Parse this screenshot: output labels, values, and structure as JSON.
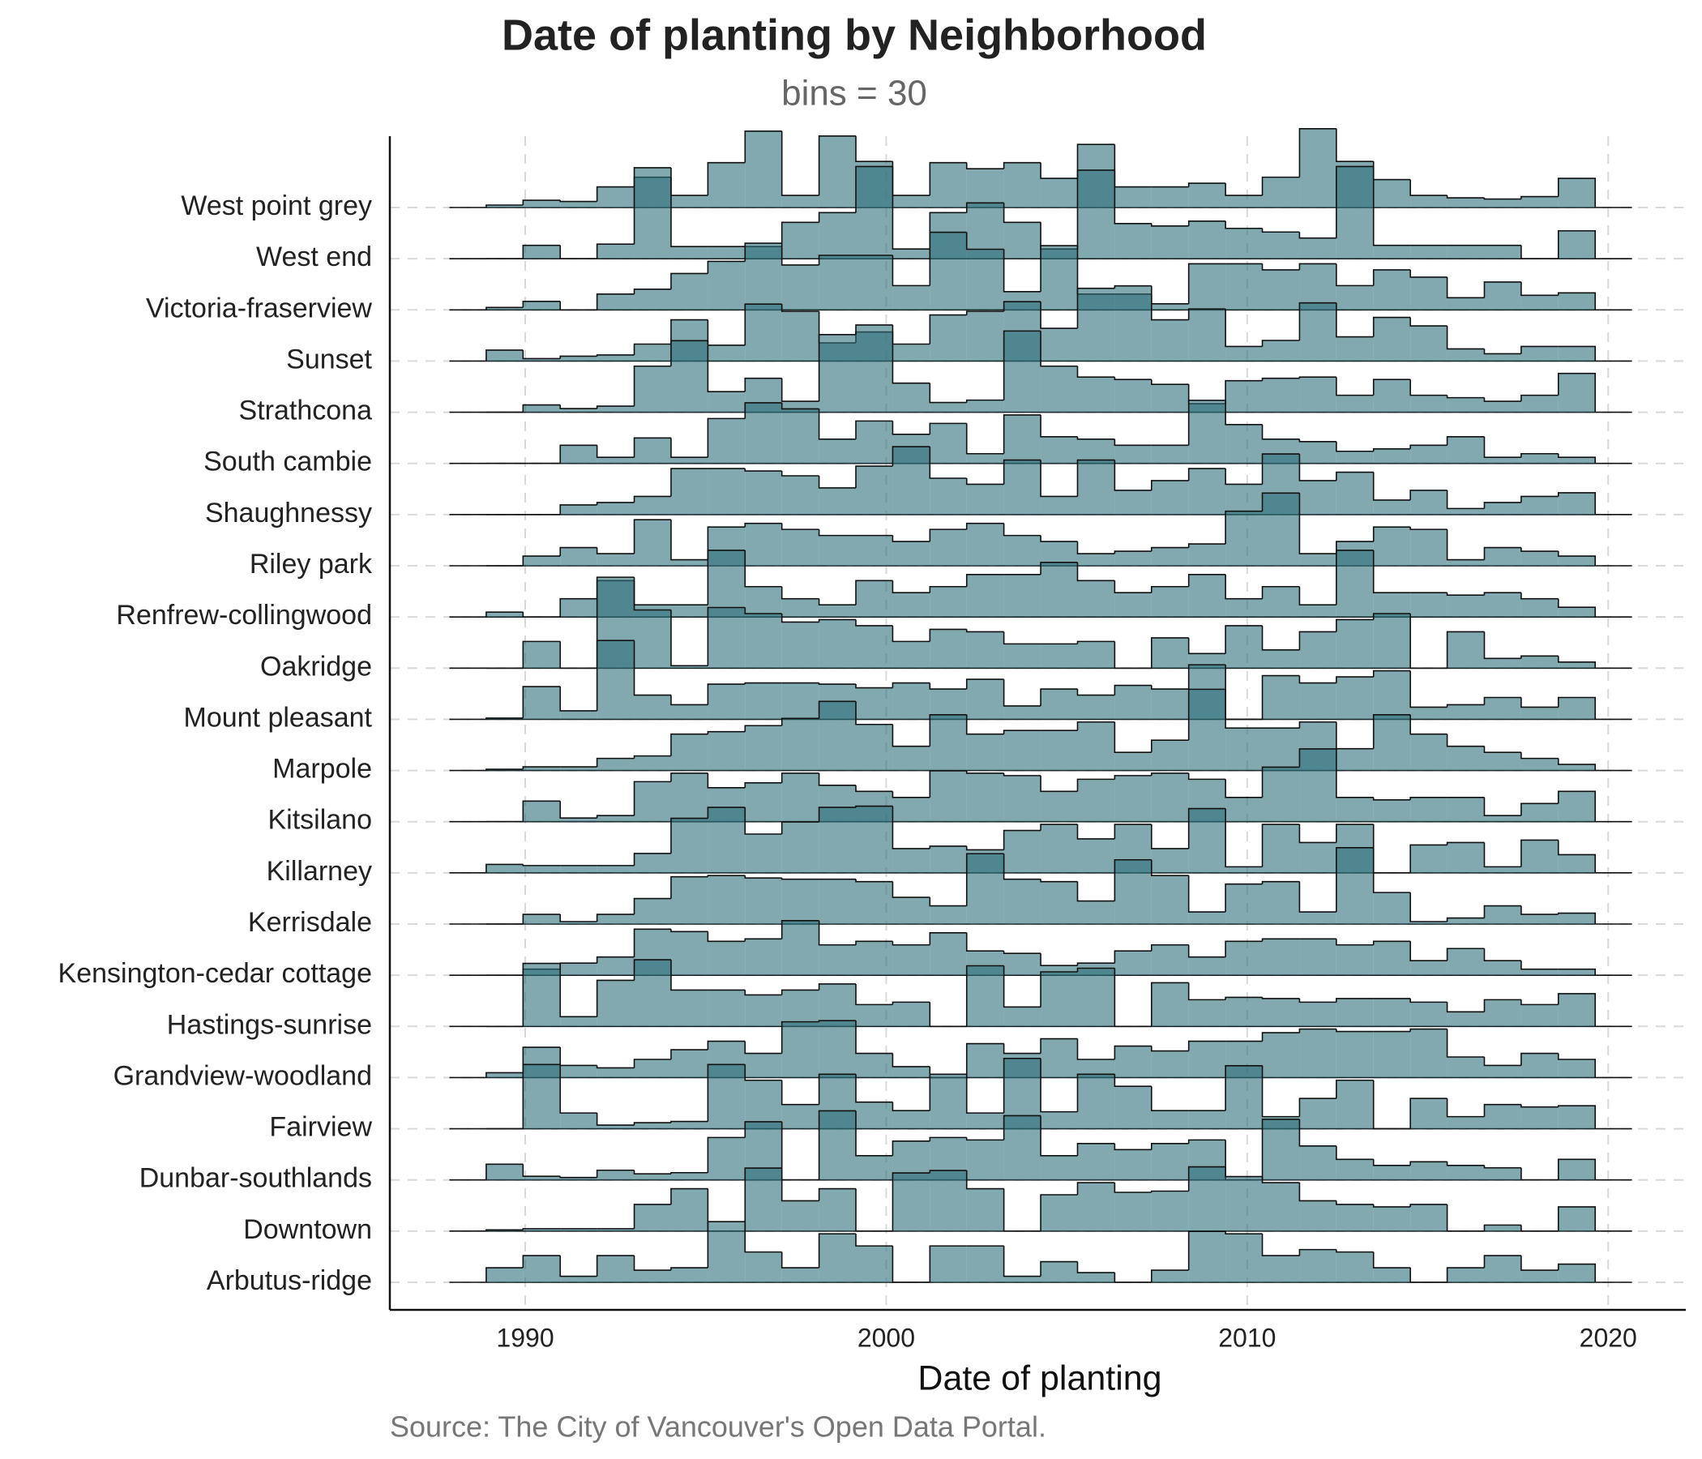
{
  "chart_data": {
    "type": "ridgeline_histogram",
    "title": "Date of planting by Neighborhood",
    "subtitle": "bins = 30",
    "x_label": "Date of planting",
    "source": "Source: The City of Vancouver's Open Data Portal.",
    "color": "#2f6f7a",
    "xlim": [
      1986.25,
      2022.15
    ],
    "xticks": [
      1990,
      2000,
      2010,
      2020
    ],
    "grid": true,
    "bins": [
      1988.92,
      1989.94,
      1990.97,
      1991.99,
      1993.02,
      1994.04,
      1995.06,
      1996.09,
      1997.11,
      1998.14,
      1999.16,
      2000.18,
      2001.21,
      2002.23,
      2003.26,
      2004.28,
      2005.3,
      2006.33,
      2007.35,
      2008.38,
      2009.4,
      2010.42,
      2011.45,
      2012.47,
      2013.5,
      2014.52,
      2015.54,
      2016.57,
      2017.59,
      2018.62,
      2019.64
    ],
    "categories": [
      "West point grey",
      "West end",
      "Victoria-fraserview",
      "Sunset",
      "Strathcona",
      "South cambie",
      "Shaughnessy",
      "Riley park",
      "Renfrew-collingwood",
      "Oakridge",
      "Mount pleasant",
      "Marpole",
      "Kitsilano",
      "Killarney",
      "Kerrisdale",
      "Kensington-cedar cottage",
      "Hastings-sunrise",
      "Grandview-woodland",
      "Fairview",
      "Dunbar-southlands",
      "Downtown",
      "Arbutus-ridge"
    ],
    "values": [
      [
        2,
        6,
        5,
        17,
        25,
        10,
        37,
        63,
        10,
        59,
        38,
        10,
        37,
        32,
        37,
        24,
        52,
        17,
        17,
        20,
        10,
        25,
        65,
        38,
        23,
        10,
        8,
        7,
        9,
        24
      ],
      [
        0,
        11,
        0,
        12,
        75,
        10,
        10,
        10,
        30,
        38,
        76,
        8,
        38,
        46,
        30,
        8,
        73,
        29,
        27,
        31,
        25,
        22,
        17,
        76,
        11,
        11,
        11,
        11,
        0,
        23
      ],
      [
        2,
        7,
        0,
        13,
        17,
        30,
        40,
        55,
        37,
        45,
        45,
        20,
        64,
        50,
        15,
        53,
        13,
        13,
        5,
        38,
        38,
        33,
        38,
        20,
        33,
        27,
        10,
        23,
        12,
        14
      ],
      [
        9,
        2,
        4,
        5,
        14,
        34,
        13,
        47,
        41,
        15,
        24,
        14,
        38,
        41,
        49,
        27,
        60,
        62,
        34,
        43,
        12,
        17,
        48,
        20,
        36,
        29,
        10,
        6,
        12,
        12
      ],
      [
        0,
        6,
        3,
        5,
        38,
        59,
        17,
        28,
        9,
        64,
        72,
        24,
        8,
        10,
        67,
        38,
        29,
        27,
        23,
        7,
        26,
        28,
        29,
        14,
        27,
        14,
        12,
        9,
        14,
        32
      ],
      [
        0,
        0,
        15,
        5,
        21,
        5,
        37,
        50,
        45,
        20,
        35,
        24,
        33,
        8,
        40,
        22,
        20,
        15,
        15,
        52,
        32,
        20,
        18,
        10,
        12,
        15,
        22,
        5,
        8,
        5
      ],
      [
        0,
        0,
        8,
        10,
        15,
        38,
        38,
        36,
        32,
        22,
        40,
        56,
        30,
        25,
        45,
        15,
        45,
        20,
        28,
        38,
        25,
        50,
        28,
        35,
        12,
        20,
        5,
        10,
        15,
        18
      ],
      [
        0,
        8,
        15,
        10,
        38,
        5,
        32,
        35,
        30,
        25,
        25,
        20,
        30,
        35,
        25,
        20,
        10,
        12,
        15,
        18,
        45,
        60,
        10,
        20,
        32,
        30,
        5,
        15,
        12,
        8
      ],
      [
        4,
        0,
        15,
        30,
        10,
        10,
        55,
        25,
        15,
        10,
        30,
        20,
        25,
        35,
        35,
        45,
        30,
        20,
        25,
        35,
        15,
        25,
        10,
        55,
        20,
        20,
        18,
        20,
        15,
        8
      ],
      [
        0,
        22,
        0,
        75,
        48,
        2,
        50,
        45,
        38,
        40,
        35,
        22,
        32,
        30,
        20,
        20,
        22,
        0,
        25,
        12,
        35,
        15,
        30,
        40,
        45,
        0,
        30,
        8,
        10,
        5
      ],
      [
        1,
        27,
        7,
        65,
        20,
        12,
        29,
        30,
        30,
        29,
        26,
        30,
        25,
        33,
        11,
        25,
        20,
        28,
        25,
        45,
        0,
        36,
        30,
        35,
        40,
        10,
        12,
        18,
        10,
        18
      ],
      [
        1,
        3,
        3,
        10,
        12,
        30,
        32,
        37,
        43,
        57,
        38,
        20,
        46,
        30,
        33,
        33,
        40,
        15,
        25,
        67,
        35,
        35,
        40,
        18,
        46,
        30,
        20,
        15,
        10,
        5
      ],
      [
        0,
        17,
        3,
        5,
        33,
        40,
        28,
        32,
        40,
        30,
        25,
        20,
        42,
        40,
        38,
        25,
        35,
        38,
        40,
        35,
        20,
        45,
        60,
        20,
        18,
        20,
        20,
        5,
        15,
        25
      ],
      [
        7,
        6,
        6,
        6,
        16,
        45,
        54,
        32,
        42,
        54,
        55,
        20,
        22,
        19,
        35,
        40,
        28,
        40,
        20,
        53,
        5,
        40,
        25,
        40,
        0,
        23,
        25,
        5,
        27,
        15
      ],
      [
        0,
        8,
        2,
        8,
        21,
        39,
        40,
        38,
        37,
        37,
        35,
        22,
        15,
        58,
        37,
        35,
        19,
        53,
        40,
        10,
        33,
        35,
        10,
        63,
        26,
        2,
        5,
        15,
        8,
        9
      ],
      [
        0,
        5,
        10,
        15,
        38,
        36,
        28,
        30,
        45,
        25,
        28,
        25,
        35,
        20,
        18,
        8,
        10,
        20,
        25,
        15,
        28,
        30,
        30,
        25,
        28,
        12,
        22,
        12,
        5,
        5
      ],
      [
        0,
        52,
        8,
        38,
        55,
        30,
        30,
        26,
        30,
        35,
        18,
        20,
        0,
        50,
        16,
        45,
        48,
        0,
        36,
        22,
        24,
        23,
        20,
        23,
        23,
        20,
        12,
        22,
        18,
        27
      ],
      [
        4,
        25,
        10,
        8,
        15,
        23,
        30,
        20,
        46,
        47,
        20,
        9,
        0,
        28,
        20,
        32,
        15,
        26,
        22,
        30,
        30,
        37,
        40,
        38,
        38,
        40,
        17,
        10,
        20,
        15
      ],
      [
        0,
        53,
        13,
        3,
        5,
        6,
        53,
        40,
        20,
        45,
        22,
        15,
        45,
        13,
        58,
        14,
        45,
        35,
        15,
        15,
        52,
        10,
        25,
        40,
        0,
        25,
        10,
        20,
        18,
        19
      ],
      [
        13,
        3,
        2,
        8,
        5,
        6,
        35,
        48,
        0,
        57,
        20,
        32,
        35,
        33,
        53,
        20,
        30,
        25,
        30,
        33,
        0,
        50,
        28,
        17,
        12,
        15,
        12,
        10,
        0,
        17
      ],
      [
        1,
        2,
        2,
        2,
        22,
        35,
        0,
        52,
        25,
        35,
        0,
        48,
        50,
        35,
        0,
        30,
        40,
        32,
        33,
        53,
        45,
        40,
        25,
        22,
        20,
        22,
        0,
        5,
        0,
        20
      ],
      [
        12,
        22,
        5,
        22,
        10,
        12,
        50,
        25,
        12,
        40,
        30,
        0,
        30,
        30,
        5,
        17,
        8,
        0,
        10,
        42,
        40,
        22,
        27,
        25,
        12,
        0,
        12,
        22,
        10,
        15
      ]
    ]
  }
}
